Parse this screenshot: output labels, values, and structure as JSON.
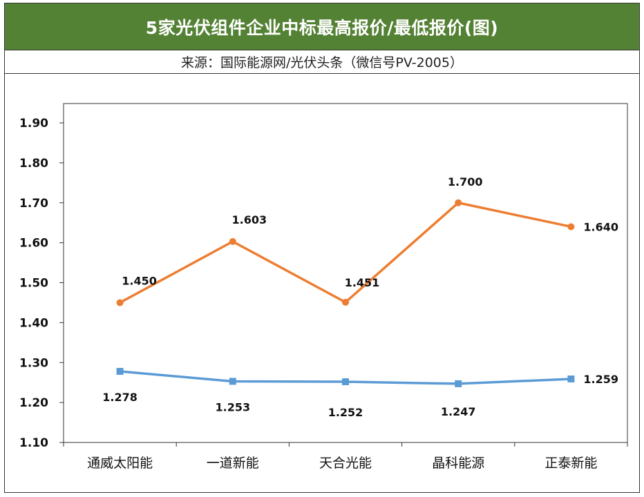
{
  "title": "5家光伏组件企业中标最高报价/最低报价(图)",
  "subtitle": "来源：国际能源网/光伏头条（微信号PV-2005）",
  "colors": {
    "header_bg": "#548235",
    "high_series": "#ED7D31",
    "low_series": "#5B9BD5"
  },
  "chart_data": {
    "type": "line",
    "categories": [
      "通威太阳能",
      "一道新能",
      "天合光能",
      "晶科能源",
      "正泰新能"
    ],
    "series": [
      {
        "values": [
          1.45,
          1.603,
          1.451,
          1.7,
          1.64
        ],
        "labels": [
          "1.450",
          "1.603",
          "1.451",
          "1.700",
          "1.640"
        ],
        "color": "#ED7D31",
        "marker": "circle"
      },
      {
        "values": [
          1.278,
          1.253,
          1.252,
          1.247,
          1.259
        ],
        "labels": [
          "1.278",
          "1.253",
          "1.252",
          "1.247",
          "1.259"
        ],
        "color": "#5B9BD5",
        "marker": "square"
      }
    ],
    "ylim": [
      1.1,
      1.9
    ],
    "yticks": [
      "1.10",
      "1.20",
      "1.30",
      "1.40",
      "1.50",
      "1.60",
      "1.70",
      "1.80",
      "1.90"
    ],
    "grid": false,
    "legend": "none"
  }
}
